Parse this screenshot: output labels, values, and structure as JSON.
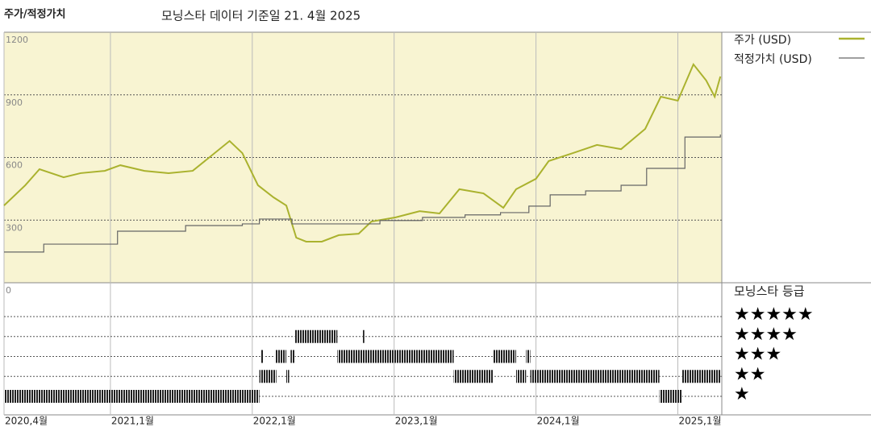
{
  "chart_data": {
    "type": "line",
    "title": "주가/적정가치",
    "subtitle": "모닝스타 데이터 기준일 21. 4월 2025",
    "xlim": [
      2020.25,
      2025.31
    ],
    "xticks": [
      {
        "value": 2020.25,
        "label": "2020,4월"
      },
      {
        "value": 2021.0,
        "label": "2021,1월"
      },
      {
        "value": 2022.0,
        "label": "2022,1월"
      },
      {
        "value": 2023.0,
        "label": "2023,1월"
      },
      {
        "value": 2024.0,
        "label": "2024,1월"
      },
      {
        "value": 2025.0,
        "label": "2025,1월"
      }
    ],
    "ylim": [
      0,
      1200
    ],
    "yticks": [
      0,
      300,
      600,
      900,
      1200
    ],
    "grid": true,
    "series": [
      {
        "name": "주가 (USD)",
        "color": "#aab22e",
        "step": false,
        "x": [
          2020.25,
          2020.4,
          2020.5,
          2020.67,
          2020.79,
          2020.96,
          2021.07,
          2021.24,
          2021.41,
          2021.58,
          2021.7,
          2021.84,
          2021.93,
          2022.04,
          2022.15,
          2022.24,
          2022.31,
          2022.38,
          2022.49,
          2022.61,
          2022.75,
          2022.84,
          2023.01,
          2023.18,
          2023.32,
          2023.46,
          2023.63,
          2023.77,
          2023.86,
          2024.0,
          2024.09,
          2024.26,
          2024.43,
          2024.6,
          2024.77,
          2024.88,
          2025.0,
          2025.11,
          2025.2,
          2025.26,
          2025.3
        ],
        "values": [
          370,
          467,
          544,
          505,
          525,
          536,
          563,
          536,
          525,
          536,
          602,
          679,
          621,
          467,
          409,
          370,
          216,
          197,
          197,
          228,
          235,
          293,
          313,
          343,
          332,
          448,
          428,
          359,
          448,
          498,
          583,
          621,
          660,
          640,
          737,
          891,
          872,
          1046,
          969,
          891,
          988
        ]
      },
      {
        "name": "적정가치 (USD)",
        "color": "#666666",
        "step": true,
        "x": [
          2020.25,
          2020.53,
          2021.05,
          2021.53,
          2021.93,
          2022.05,
          2022.28,
          2022.9,
          2023.2,
          2023.5,
          2023.75,
          2023.95,
          2024.1,
          2024.35,
          2024.6,
          2024.78,
          2025.05,
          2025.3
        ],
        "values": [
          147,
          185,
          247,
          274,
          282,
          305,
          282,
          298,
          313,
          325,
          336,
          367,
          421,
          440,
          467,
          548,
          698,
          710
        ]
      }
    ],
    "ratings": {
      "title": "모닝스타 등급",
      "levels": [
        {
          "stars": 5,
          "label": "★★★★★"
        },
        {
          "stars": 4,
          "label": "★★★★"
        },
        {
          "stars": 3,
          "label": "★★★"
        },
        {
          "stars": 2,
          "label": "★★"
        },
        {
          "stars": 1,
          "label": "★"
        }
      ],
      "periods": [
        {
          "stars": 1,
          "start": 2020.25,
          "end": 2022.05
        },
        {
          "stars": 1,
          "start": 2024.87,
          "end": 2025.03
        },
        {
          "stars": 2,
          "start": 2022.05,
          "end": 2022.17
        },
        {
          "stars": 2,
          "start": 2022.24,
          "end": 2022.26
        },
        {
          "stars": 2,
          "start": 2023.42,
          "end": 2023.7
        },
        {
          "stars": 2,
          "start": 2023.86,
          "end": 2023.93
        },
        {
          "stars": 2,
          "start": 2023.96,
          "end": 2024.87
        },
        {
          "stars": 2,
          "start": 2025.03,
          "end": 2025.3
        },
        {
          "stars": 3,
          "start": 2022.06,
          "end": 2022.08
        },
        {
          "stars": 3,
          "start": 2022.16,
          "end": 2022.24
        },
        {
          "stars": 3,
          "start": 2022.27,
          "end": 2022.3
        },
        {
          "stars": 3,
          "start": 2022.6,
          "end": 2023.42
        },
        {
          "stars": 3,
          "start": 2023.7,
          "end": 2023.86
        },
        {
          "stars": 3,
          "start": 2023.93,
          "end": 2023.96
        },
        {
          "stars": 4,
          "start": 2022.3,
          "end": 2022.6
        },
        {
          "stars": 4,
          "start": 2022.78,
          "end": 2022.79
        }
      ]
    }
  }
}
